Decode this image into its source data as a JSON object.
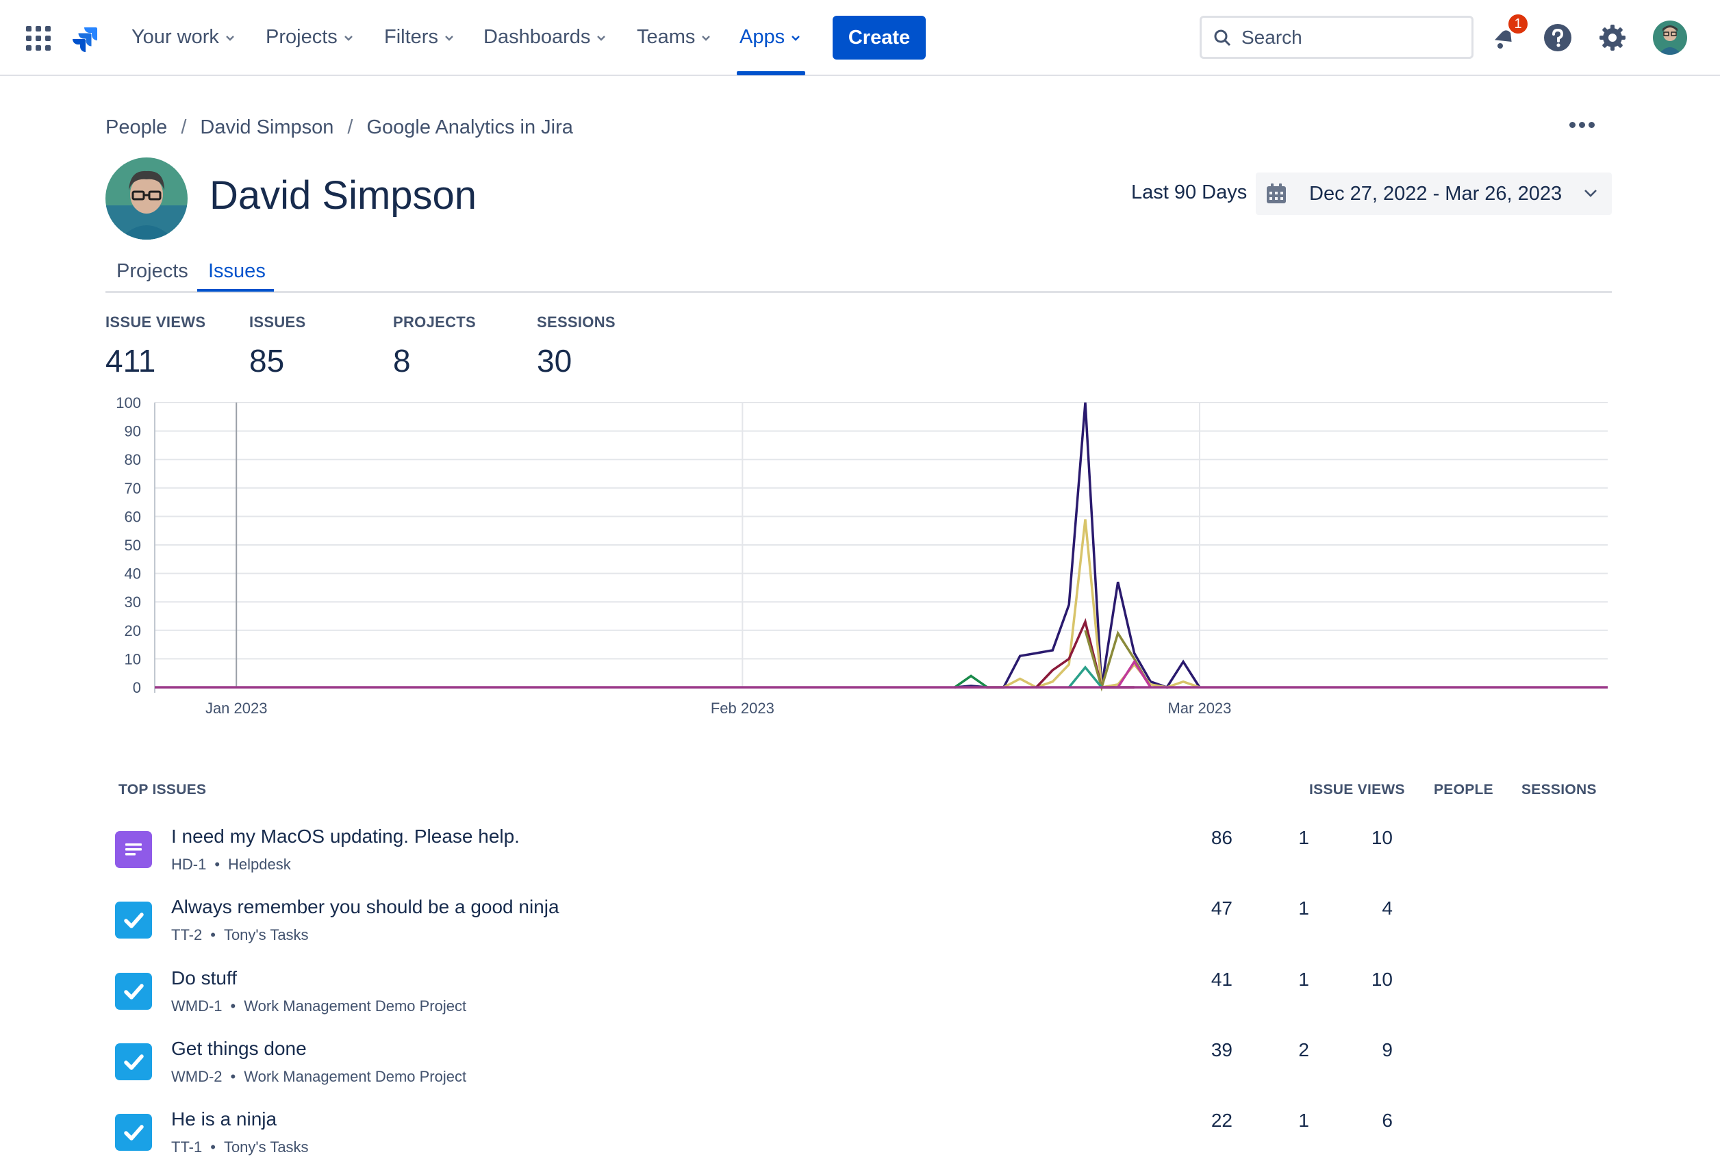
{
  "nav": {
    "items": [
      {
        "label": "Your work"
      },
      {
        "label": "Projects"
      },
      {
        "label": "Filters"
      },
      {
        "label": "Dashboards"
      },
      {
        "label": "Teams"
      },
      {
        "label": "Apps"
      }
    ],
    "active": "Apps",
    "create_label": "Create",
    "search_placeholder": "Search",
    "notification_count": "1",
    "colors": {
      "brand": "#0052cc",
      "badge": "#de350b"
    }
  },
  "breadcrumb": [
    "People",
    "David Simpson",
    "Google Analytics in Jira"
  ],
  "profile": {
    "name": "David Simpson"
  },
  "date_range": {
    "label": "Last 90 Days",
    "value": "Dec 27, 2022 - Mar 26, 2023"
  },
  "tabs": [
    "Projects",
    "Issues"
  ],
  "active_tab": "Issues",
  "stats": [
    {
      "label": "ISSUE VIEWS",
      "value": "411"
    },
    {
      "label": "ISSUES",
      "value": "85"
    },
    {
      "label": "PROJECTS",
      "value": "8"
    },
    {
      "label": "SESSIONS",
      "value": "30"
    }
  ],
  "chart_data": {
    "type": "line",
    "title": "",
    "xlabel": "",
    "ylabel": "",
    "ylim": [
      0,
      100
    ],
    "yticks": [
      "100",
      "90",
      "80",
      "70",
      "60",
      "50",
      "40",
      "30",
      "20",
      "10",
      "0"
    ],
    "xtick_labels": [
      "Jan 2023",
      "Feb 2023",
      "Mar 2023"
    ],
    "xtick_dates": [
      "2023-01-01",
      "2023-02-01",
      "2023-03-01"
    ],
    "xlim": [
      "2022-12-27",
      "2023-03-26"
    ],
    "grid": true,
    "series": [
      {
        "color": "#2a1a6e",
        "points": [
          [
            "2023-02-14",
            0
          ],
          [
            "2023-02-15",
            0.5
          ],
          [
            "2023-02-16",
            0
          ],
          [
            "2023-02-17",
            0
          ],
          [
            "2023-02-18",
            11
          ],
          [
            "2023-02-19",
            12
          ],
          [
            "2023-02-20",
            13
          ],
          [
            "2023-02-21",
            29
          ],
          [
            "2023-02-22",
            100
          ],
          [
            "2023-02-23",
            0
          ],
          [
            "2023-02-24",
            37
          ],
          [
            "2023-02-25",
            12
          ],
          [
            "2023-02-26",
            2
          ],
          [
            "2023-02-27",
            0
          ],
          [
            "2023-02-28",
            9
          ],
          [
            "2023-03-01",
            0
          ]
        ]
      },
      {
        "color": "#d8c46a",
        "points": [
          [
            "2023-02-16",
            0
          ],
          [
            "2023-02-17",
            0
          ],
          [
            "2023-02-18",
            3
          ],
          [
            "2023-02-19",
            0
          ],
          [
            "2023-02-20",
            2
          ],
          [
            "2023-02-21",
            8
          ],
          [
            "2023-02-22",
            59
          ],
          [
            "2023-02-23",
            0
          ],
          [
            "2023-02-24",
            1
          ],
          [
            "2023-02-25",
            8
          ],
          [
            "2023-02-26",
            1
          ],
          [
            "2023-02-27",
            0
          ],
          [
            "2023-02-28",
            2
          ],
          [
            "2023-03-01",
            0
          ]
        ]
      },
      {
        "color": "#8b1a3a",
        "points": [
          [
            "2023-02-19",
            0
          ],
          [
            "2023-02-20",
            6
          ],
          [
            "2023-02-21",
            10
          ],
          [
            "2023-02-22",
            23
          ],
          [
            "2023-02-23",
            0
          ],
          [
            "2023-02-24",
            0
          ],
          [
            "2023-02-25",
            0
          ]
        ]
      },
      {
        "color": "#8a8a3a",
        "points": [
          [
            "2023-02-22",
            20
          ],
          [
            "2023-02-23",
            0
          ],
          [
            "2023-02-24",
            19
          ],
          [
            "2023-02-25",
            10
          ],
          [
            "2023-02-26",
            0
          ]
        ]
      },
      {
        "color": "#1a8a4a",
        "points": [
          [
            "2023-02-14",
            0
          ],
          [
            "2023-02-15",
            4
          ],
          [
            "2023-02-16",
            0
          ]
        ]
      },
      {
        "color": "#2aa08a",
        "points": [
          [
            "2023-02-21",
            0
          ],
          [
            "2023-02-22",
            7
          ],
          [
            "2023-02-23",
            0
          ]
        ]
      },
      {
        "color": "#c03a9a",
        "points": [
          [
            "2023-02-24",
            0
          ],
          [
            "2023-02-25",
            9
          ],
          [
            "2023-02-26",
            0
          ]
        ]
      },
      {
        "color": "#9b3a8a",
        "points": [
          [
            "2022-12-27",
            0
          ],
          [
            "2023-03-26",
            0
          ]
        ]
      }
    ]
  },
  "table": {
    "title": "TOP ISSUES",
    "columns": [
      "ISSUE VIEWS",
      "PEOPLE",
      "SESSIONS"
    ],
    "rows": [
      {
        "icon": "service-request-icon",
        "icon_color": "#8f5ae8",
        "title": "I need my MacOS updating. Please help.",
        "key": "HD-1",
        "project": "Helpdesk",
        "views": "86",
        "people": "1",
        "sessions": "10"
      },
      {
        "icon": "task-icon",
        "icon_color": "#1aa1e6",
        "title": "Always remember you should be a good ninja",
        "key": "TT-2",
        "project": "Tony's Tasks",
        "views": "47",
        "people": "1",
        "sessions": "4"
      },
      {
        "icon": "task-icon",
        "icon_color": "#1aa1e6",
        "title": "Do stuff",
        "key": "WMD-1",
        "project": "Work Management Demo Project",
        "views": "41",
        "people": "1",
        "sessions": "10"
      },
      {
        "icon": "task-icon",
        "icon_color": "#1aa1e6",
        "title": "Get things done",
        "key": "WMD-2",
        "project": "Work Management Demo Project",
        "views": "39",
        "people": "2",
        "sessions": "9"
      },
      {
        "icon": "task-icon",
        "icon_color": "#1aa1e6",
        "title": "He is a ninja",
        "key": "TT-1",
        "project": "Tony's Tasks",
        "views": "22",
        "people": "1",
        "sessions": "6"
      }
    ]
  }
}
